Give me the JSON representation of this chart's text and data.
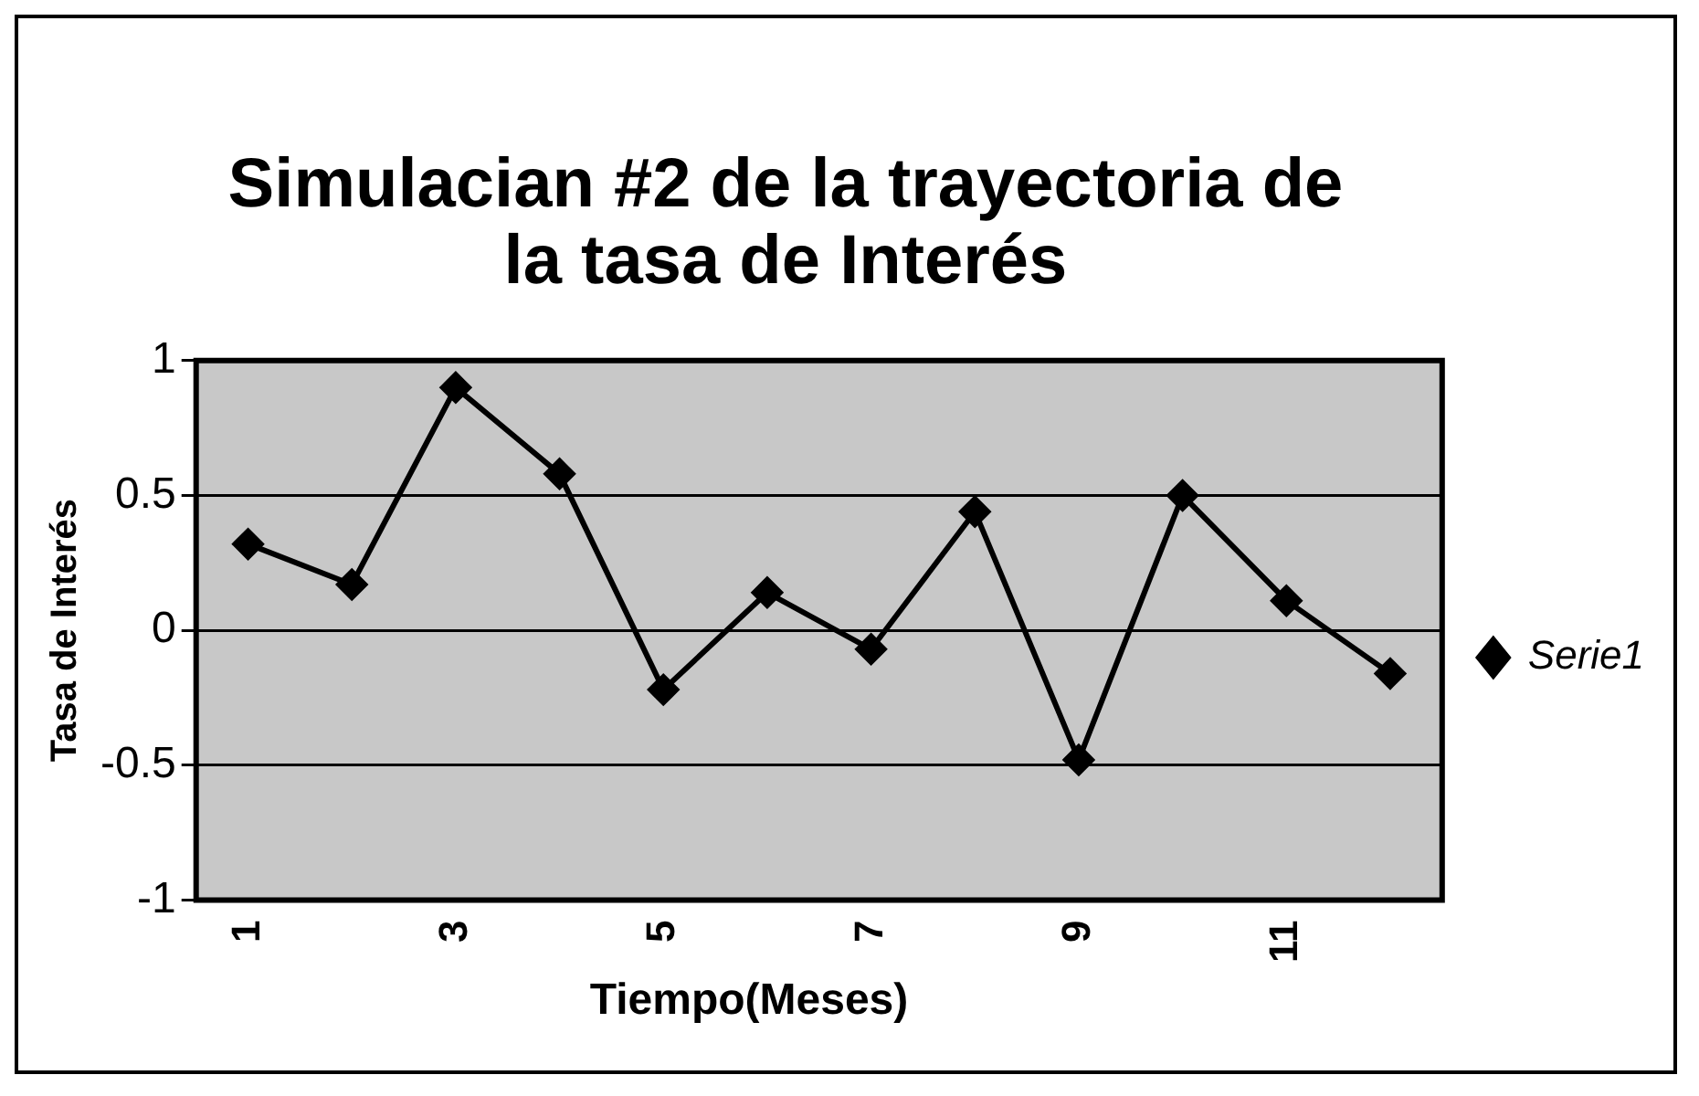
{
  "chart_data": {
    "type": "line",
    "title": "Simulacian #2 de la trayectoria de la tasa de Interés",
    "xlabel": "Tiempo(Meses)",
    "ylabel": "Tasa de Interés",
    "categories": [
      "1",
      null,
      "3",
      null,
      "5",
      null,
      "7",
      null,
      "9",
      null,
      "11",
      null
    ],
    "series": [
      {
        "name": "Serie1",
        "color": "#000000",
        "values": [
          0.32,
          0.17,
          0.9,
          0.58,
          -0.22,
          0.14,
          -0.07,
          0.44,
          -0.48,
          0.5,
          0.11,
          -0.16
        ]
      }
    ],
    "ylim": [
      -1,
      1
    ],
    "yticks": [
      -1,
      -0.5,
      0,
      0.5,
      1
    ],
    "grid": "y",
    "legend": "right",
    "marker": "diamond",
    "line_style": "solid"
  }
}
